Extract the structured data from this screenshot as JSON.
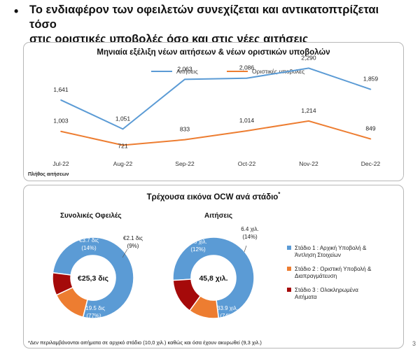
{
  "headline": {
    "line1": "Το ενδιαφέρον των οφειλετών συνεχίζεται και αντικατοπτρίζεται τόσο",
    "line2": "στις οριστικές υποβολές όσο και στις νέες αιτήσεις"
  },
  "colors": {
    "blue": "#5b9bd5",
    "orange": "#ed7d31",
    "darkred": "#a50a0a",
    "text": "#111111"
  },
  "chart_data": [
    {
      "type": "line",
      "title": "Μηνιαία εξέλιξη νέων αιτήσεων & νέων οριστικών υποβολών",
      "categories": [
        "Jul-22",
        "Aug-22",
        "Sep-22",
        "Oct-22",
        "Nov-22",
        "Dec-22"
      ],
      "series": [
        {
          "name": "Αιτήσεις",
          "values": [
            1641,
            1051,
            2063,
            2086,
            2290,
            1859
          ],
          "labels": [
            "1,641",
            "1,051",
            "2,063",
            "2,086",
            "2,290",
            "1,859"
          ],
          "color": "#5b9bd5"
        },
        {
          "name": "Οριστικές υποβολές",
          "values": [
            1003,
            721,
            833,
            1014,
            1214,
            849
          ],
          "labels": [
            "1,003",
            "721",
            "833",
            "1,014",
            "1,214",
            "849"
          ],
          "color": "#ed7d31"
        }
      ],
      "ylabel": "Πλήθος αιτήσεων",
      "legend": "top-center",
      "grid": false
    },
    {
      "type": "pie",
      "variant": "donut",
      "title": "Συνολικές Οφειλές",
      "center_label": "€25,3 δις",
      "slices": [
        {
          "label": "Στάδιο 1",
          "value": 77,
          "amount": "€19.5 δις",
          "pct": "(77%)",
          "color": "#5b9bd5"
        },
        {
          "label": "Στάδιο 2",
          "value": 14,
          "amount": "€3.7 δις",
          "pct": "(14%)",
          "color": "#ed7d31"
        },
        {
          "label": "Στάδιο 3",
          "value": 9,
          "amount": "€2.1 δις",
          "pct": "(9%)",
          "color": "#a50a0a"
        }
      ]
    },
    {
      "type": "pie",
      "variant": "donut",
      "title": "Αιτήσεις",
      "center_label": "45,8 χιλ.",
      "slices": [
        {
          "label": "Στάδιο 1",
          "value": 74,
          "amount": "33.9 χιλ.",
          "pct": "(74%)",
          "color": "#5b9bd5"
        },
        {
          "label": "Στάδιο 2",
          "value": 12,
          "amount": "5.5 χιλ.",
          "pct": "(12%)",
          "color": "#ed7d31"
        },
        {
          "label": "Στάδιο 3",
          "value": 14,
          "amount": "6.4 χιλ.",
          "pct": "(14%)",
          "color": "#a50a0a"
        }
      ]
    }
  ],
  "ocw_panel": {
    "title": "Τρέχουσα εικόνα OCW ανά στάδιο",
    "title_mark": "*",
    "legend": [
      {
        "line1": "Στάδιο 1 : Αρχική Υποβολή &",
        "line2": "Άντληση Στοιχείων",
        "color": "#5b9bd5"
      },
      {
        "line1": "Στάδιο 2 : Οριστική Υποβολή &",
        "line2": "Διαπραγμάτευση",
        "color": "#ed7d31"
      },
      {
        "line1": "Στάδιο 3 : Ολοκληρωμένα",
        "line2": "Αιτήματα",
        "color": "#a50a0a"
      }
    ],
    "footnote": "*Δεν περιλαμβάνονται αιτήματα σε αρχικό στάδιο (10,0 χιλ.) καθώς και όσα έχουν ακυρωθεί (9,3 χιλ.)"
  },
  "page_number": "3"
}
